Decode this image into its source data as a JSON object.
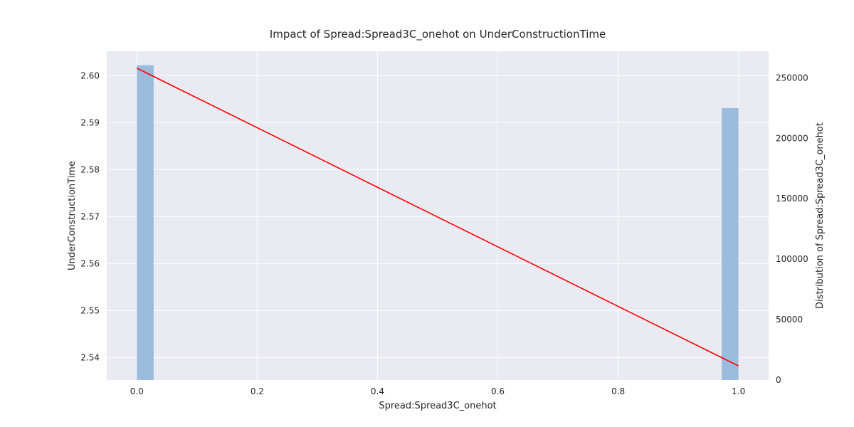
{
  "chart_data": {
    "type": "bar",
    "title": "Impact of Spread:Spread3C_onehot on UnderConstructionTime",
    "xlabel": "Spread:Spread3C_onehot",
    "ylabel": "UnderConstructionTime",
    "y2label": "Distribution of Spread:Spread3C_onehot",
    "xlim": [
      -0.05,
      1.05
    ],
    "ylim": [
      2.5352,
      2.6052
    ],
    "y2lim": [
      0,
      272000
    ],
    "x_ticks": [
      "0.0",
      "0.2",
      "0.4",
      "0.6",
      "0.8",
      "1.0"
    ],
    "x_tick_values": [
      0.0,
      0.2,
      0.4,
      0.6,
      0.8,
      1.0
    ],
    "y_ticks": [
      "2.54",
      "2.55",
      "2.56",
      "2.57",
      "2.58",
      "2.59",
      "2.60"
    ],
    "y_tick_values": [
      2.54,
      2.55,
      2.56,
      2.57,
      2.58,
      2.59,
      2.6
    ],
    "y2_ticks": [
      "0",
      "50000",
      "100000",
      "150000",
      "200000",
      "250000"
    ],
    "y2_tick_values": [
      0,
      50000,
      100000,
      150000,
      200000,
      250000
    ],
    "grid": true,
    "background": "#eaeaf2",
    "series": [
      {
        "kind": "histogram",
        "axis": "right",
        "color": "#9bbcdc",
        "bins": [
          {
            "x0": 0.0,
            "x1": 0.028,
            "count": 260500
          },
          {
            "x0": 0.972,
            "x1": 1.0,
            "count": 225000
          }
        ]
      },
      {
        "kind": "line",
        "axis": "left",
        "color": "#ff0000",
        "x": [
          0.0,
          1.0
        ],
        "y": [
          2.6016,
          2.5382
        ]
      }
    ]
  }
}
